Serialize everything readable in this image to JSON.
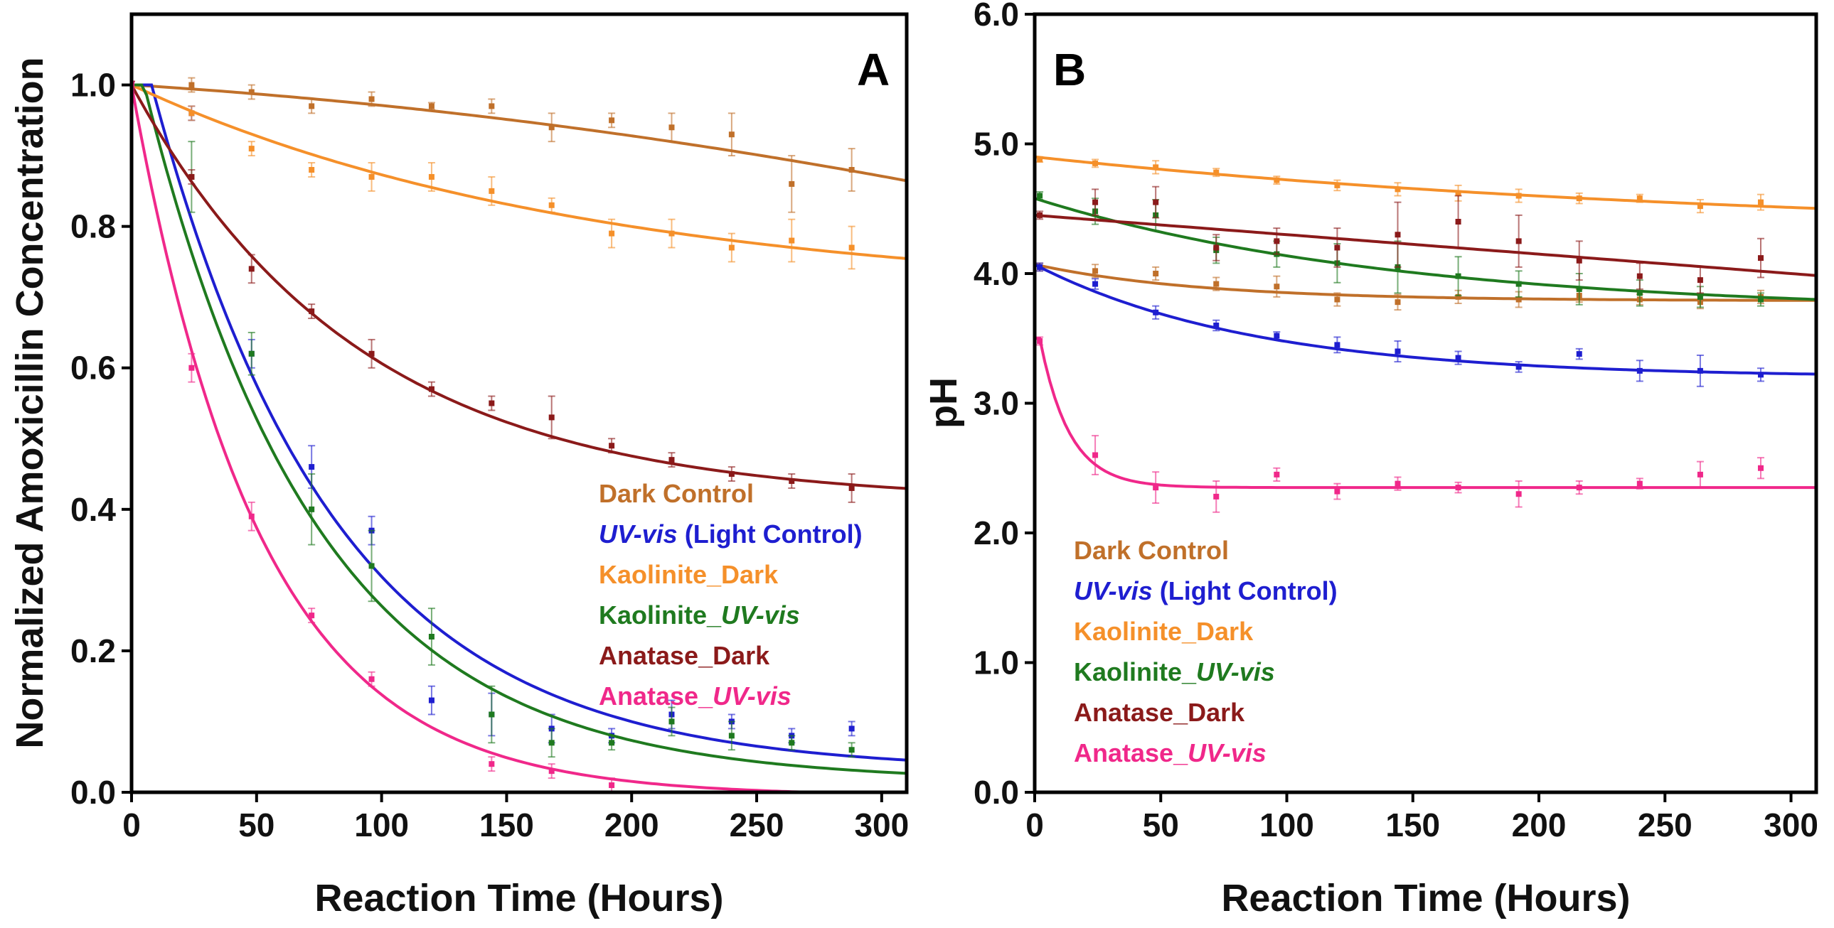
{
  "chart_data": [
    {
      "type": "scatter",
      "panel_label": "A",
      "xlabel": "Reaction Time (Hours)",
      "ylabel": "Normalized Amoxicillin Concentration",
      "xlim": [
        0,
        310
      ],
      "ylim": [
        0,
        1.1
      ],
      "x_ticks": [
        "0",
        "50",
        "100",
        "150",
        "200",
        "250",
        "300"
      ],
      "y_ticks": [
        "0.0",
        "0.2",
        "0.4",
        "0.6",
        "0.8",
        "1.0"
      ],
      "legend": [
        {
          "main": "Dark Control",
          "italic": "",
          "suffix": "",
          "color": "#c0702a"
        },
        {
          "main": "",
          "italic": "UV-vis",
          "suffix": " (Light Control)",
          "color": "#1e1ed0"
        },
        {
          "main": "Kaolinite_Dark",
          "italic": "",
          "suffix": "",
          "color": "#f5902a"
        },
        {
          "main": "Kaolinite_",
          "italic": "UV-vis",
          "suffix": "",
          "color": "#1f7a1f"
        },
        {
          "main": "Anatase_Dark",
          "italic": "",
          "suffix": "",
          "color": "#8b1a1a"
        },
        {
          "main": "Anatase_",
          "italic": "UV-vis",
          "suffix": "",
          "color": "#f0288a"
        }
      ],
      "series": [
        {
          "name": "Dark Control",
          "color": "#c0702a",
          "x": [
            0,
            24,
            48,
            72,
            96,
            120,
            144,
            168,
            192,
            216,
            240,
            264,
            288
          ],
          "y": [
            1.0,
            1.0,
            0.99,
            0.97,
            0.98,
            0.97,
            0.97,
            0.94,
            0.95,
            0.94,
            0.93,
            0.86,
            0.88
          ],
          "err": [
            0.005,
            0.01,
            0.01,
            0.01,
            0.01,
            0.005,
            0.01,
            0.02,
            0.01,
            0.02,
            0.03,
            0.04,
            0.03
          ],
          "fit": {
            "model": "poly",
            "a": 1.0,
            "b": 0.00022,
            "c": 7e-07
          }
        },
        {
          "name": "UV-vis (Light Control)",
          "color": "#1e1ed0",
          "x": [
            0,
            24,
            48,
            72,
            96,
            120,
            144,
            168,
            192,
            216,
            240,
            264,
            288
          ],
          "y": [
            1.0,
            0.96,
            0.62,
            0.46,
            0.37,
            0.13,
            0.11,
            0.09,
            0.08,
            0.11,
            0.1,
            0.08,
            0.09
          ],
          "err": [
            0.005,
            0.01,
            0.02,
            0.03,
            0.02,
            0.02,
            0.03,
            0.02,
            0.01,
            0.02,
            0.01,
            0.01,
            0.01
          ],
          "fit": {
            "model": "exp",
            "lag": 8,
            "c": 0.03,
            "k": 0.0137
          }
        },
        {
          "name": "Kaolinite_Dark",
          "color": "#f5902a",
          "x": [
            0,
            24,
            48,
            72,
            96,
            120,
            144,
            168,
            192,
            216,
            240,
            264,
            288
          ],
          "y": [
            1.0,
            0.96,
            0.91,
            0.88,
            0.87,
            0.87,
            0.85,
            0.83,
            0.79,
            0.79,
            0.77,
            0.78,
            0.77
          ],
          "err": [
            0.005,
            0.01,
            0.01,
            0.01,
            0.02,
            0.02,
            0.02,
            0.01,
            0.02,
            0.02,
            0.02,
            0.03,
            0.03
          ],
          "fit": {
            "model": "exp",
            "lag": 0,
            "c": 0.7,
            "k": 0.0055
          }
        },
        {
          "name": "Kaolinite_UV-vis",
          "color": "#1f7a1f",
          "x": [
            0,
            24,
            48,
            72,
            96,
            120,
            144,
            168,
            192,
            216,
            240,
            264,
            288
          ],
          "y": [
            1.0,
            0.87,
            0.62,
            0.4,
            0.32,
            0.22,
            0.11,
            0.07,
            0.07,
            0.1,
            0.08,
            0.07,
            0.06
          ],
          "err": [
            0.005,
            0.05,
            0.03,
            0.05,
            0.05,
            0.04,
            0.04,
            0.02,
            0.01,
            0.02,
            0.02,
            0.01,
            0.01
          ],
          "fit": {
            "model": "exp",
            "lag": 5,
            "c": 0.015,
            "k": 0.0145
          }
        },
        {
          "name": "Anatase_Dark",
          "color": "#8b1a1a",
          "x": [
            0,
            24,
            48,
            72,
            96,
            120,
            144,
            168,
            192,
            216,
            240,
            264,
            288
          ],
          "y": [
            1.0,
            0.87,
            0.74,
            0.68,
            0.62,
            0.57,
            0.55,
            0.53,
            0.49,
            0.47,
            0.45,
            0.44,
            0.43
          ],
          "err": [
            0.005,
            0.01,
            0.02,
            0.01,
            0.02,
            0.01,
            0.01,
            0.03,
            0.01,
            0.01,
            0.01,
            0.01,
            0.02
          ],
          "fit": {
            "model": "exp",
            "lag": 0,
            "c": 0.41,
            "k": 0.011
          }
        },
        {
          "name": "Anatase_UV-vis",
          "color": "#f0288a",
          "x": [
            0,
            24,
            48,
            72,
            96,
            144,
            168,
            192
          ],
          "y": [
            1.0,
            0.6,
            0.39,
            0.25,
            0.16,
            0.04,
            0.03,
            0.01
          ],
          "err": [
            0.005,
            0.02,
            0.02,
            0.01,
            0.01,
            0.01,
            0.01,
            0.01
          ],
          "fit": {
            "model": "exp",
            "lag": 0,
            "c": -0.005,
            "k": 0.0195
          }
        }
      ]
    },
    {
      "type": "scatter",
      "panel_label": "B",
      "xlabel": "Reaction Time (Hours)",
      "ylabel": "pH",
      "xlim": [
        0,
        310
      ],
      "ylim": [
        0,
        6
      ],
      "x_ticks": [
        "0",
        "50",
        "100",
        "150",
        "200",
        "250",
        "300"
      ],
      "y_ticks": [
        "0.0",
        "1.0",
        "2.0",
        "3.0",
        "4.0",
        "5.0",
        "6.0"
      ],
      "legend": [
        {
          "main": "Dark Control",
          "italic": "",
          "suffix": "",
          "color": "#c0702a"
        },
        {
          "main": "",
          "italic": "UV-vis",
          "suffix": " (Light Control)",
          "color": "#1e1ed0"
        },
        {
          "main": "Kaolinite_Dark",
          "italic": "",
          "suffix": "",
          "color": "#f5902a"
        },
        {
          "main": "Kaolinite_",
          "italic": "UV-vis",
          "suffix": "",
          "color": "#1f7a1f"
        },
        {
          "main": "Anatase_Dark",
          "italic": "",
          "suffix": "",
          "color": "#8b1a1a"
        },
        {
          "main": "Anatase_",
          "italic": "UV-vis",
          "suffix": "",
          "color": "#f0288a"
        }
      ],
      "series": [
        {
          "name": "Dark Control",
          "color": "#c0702a",
          "x": [
            2,
            24,
            48,
            72,
            96,
            120,
            144,
            168,
            192,
            216,
            240,
            264,
            288
          ],
          "y": [
            4.05,
            4.02,
            4.0,
            3.92,
            3.9,
            3.8,
            3.78,
            3.82,
            3.8,
            3.83,
            3.8,
            3.78,
            3.82
          ],
          "err": [
            0.03,
            0.05,
            0.05,
            0.05,
            0.08,
            0.05,
            0.06,
            0.05,
            0.06,
            0.05,
            0.04,
            0.05,
            0.05
          ],
          "fit": {
            "model": "exp",
            "lag": 0,
            "c": 3.79,
            "k": 0.015,
            "y0": 4.07
          }
        },
        {
          "name": "UV-vis (Light Control)",
          "color": "#1e1ed0",
          "x": [
            2,
            24,
            48,
            72,
            96,
            120,
            144,
            168,
            192,
            216,
            240,
            264,
            288
          ],
          "y": [
            4.05,
            3.92,
            3.7,
            3.6,
            3.52,
            3.45,
            3.4,
            3.35,
            3.28,
            3.38,
            3.25,
            3.25,
            3.22
          ],
          "err": [
            0.03,
            0.04,
            0.05,
            0.04,
            0.03,
            0.06,
            0.08,
            0.05,
            0.04,
            0.04,
            0.08,
            0.12,
            0.05
          ],
          "fit": {
            "model": "exp",
            "lag": 0,
            "c": 3.2,
            "k": 0.0115,
            "y0": 4.07
          }
        },
        {
          "name": "Kaolinite_Dark",
          "color": "#f5902a",
          "x": [
            2,
            24,
            48,
            72,
            96,
            120,
            144,
            168,
            192,
            216,
            240,
            264,
            288
          ],
          "y": [
            4.88,
            4.85,
            4.82,
            4.78,
            4.72,
            4.68,
            4.65,
            4.62,
            4.6,
            4.58,
            4.58,
            4.52,
            4.55
          ],
          "err": [
            0.02,
            0.03,
            0.05,
            0.03,
            0.03,
            0.04,
            0.05,
            0.06,
            0.05,
            0.04,
            0.03,
            0.05,
            0.06
          ],
          "fit": {
            "model": "exp",
            "lag": 0,
            "c": 4.3,
            "k": 0.0035,
            "y0": 4.9
          }
        },
        {
          "name": "Kaolinite_UV-vis",
          "color": "#1f7a1f",
          "x": [
            2,
            24,
            48,
            72,
            96,
            120,
            144,
            168,
            192,
            216,
            240,
            264,
            288
          ],
          "y": [
            4.6,
            4.48,
            4.45,
            4.18,
            4.15,
            4.08,
            4.05,
            3.98,
            3.92,
            3.88,
            3.85,
            3.82,
            3.8
          ],
          "err": [
            0.03,
            0.1,
            0.12,
            0.1,
            0.1,
            0.15,
            0.2,
            0.15,
            0.1,
            0.12,
            0.1,
            0.08,
            0.05
          ],
          "fit": {
            "model": "exp",
            "lag": 0,
            "c": 3.7,
            "k": 0.007,
            "y0": 4.58
          }
        },
        {
          "name": "Anatase_Dark",
          "color": "#8b1a1a",
          "x": [
            2,
            24,
            48,
            72,
            96,
            120,
            144,
            168,
            192,
            216,
            240,
            264,
            288
          ],
          "y": [
            4.45,
            4.55,
            4.55,
            4.2,
            4.25,
            4.2,
            4.3,
            4.4,
            4.25,
            4.1,
            3.98,
            3.95,
            4.12
          ],
          "err": [
            0.03,
            0.1,
            0.12,
            0.1,
            0.1,
            0.15,
            0.25,
            0.2,
            0.2,
            0.15,
            0.1,
            0.1,
            0.15
          ],
          "fit": {
            "model": "lin",
            "a": 4.45,
            "b": -0.0015
          }
        },
        {
          "name": "Anatase_UV-vis",
          "color": "#f0288a",
          "x": [
            2,
            24,
            48,
            72,
            96,
            120,
            144,
            168,
            192,
            216,
            240,
            264,
            288
          ],
          "y": [
            3.48,
            2.6,
            2.35,
            2.28,
            2.45,
            2.32,
            2.38,
            2.35,
            2.3,
            2.35,
            2.38,
            2.45,
            2.5
          ],
          "err": [
            0.03,
            0.15,
            0.12,
            0.12,
            0.05,
            0.06,
            0.05,
            0.04,
            0.1,
            0.05,
            0.04,
            0.1,
            0.08
          ],
          "fit": {
            "model": "exp",
            "lag": 2,
            "c": 2.35,
            "k": 0.085,
            "y0": 3.5
          }
        }
      ]
    }
  ]
}
